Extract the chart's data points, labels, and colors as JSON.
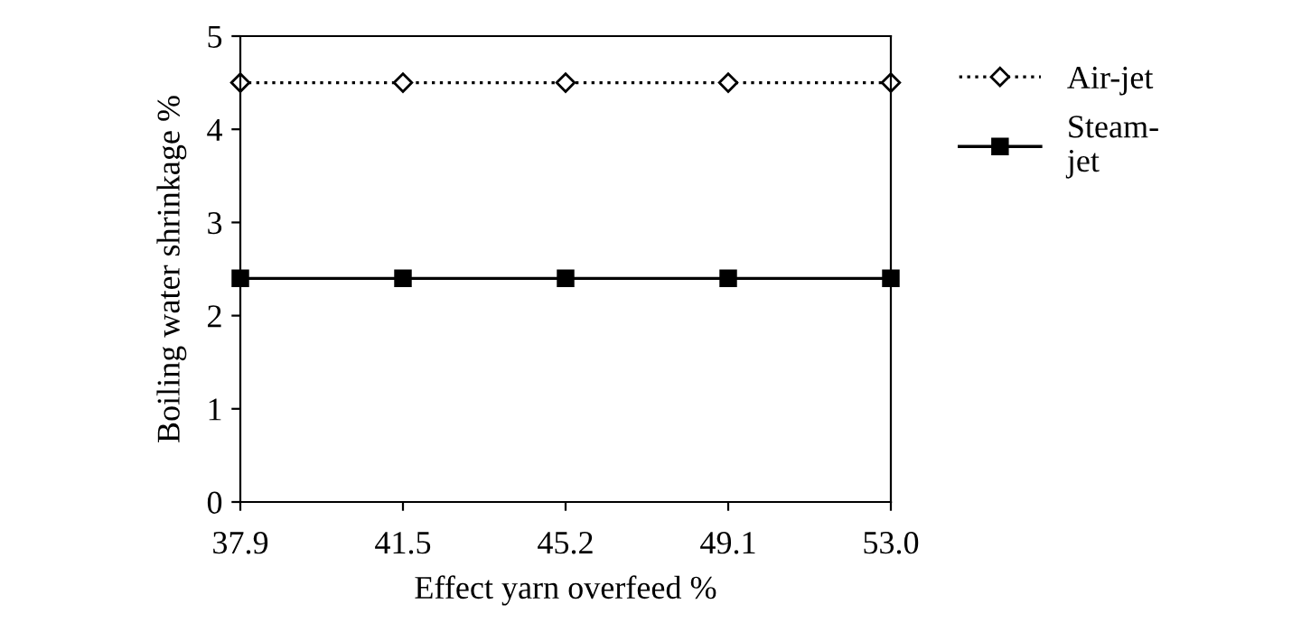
{
  "chart_data": {
    "type": "line",
    "xlabel": "Effect yarn overfeed %",
    "ylabel": "Boiling water shrinkage %",
    "categories": [
      "37.9",
      "41.5",
      "45.2",
      "49.1",
      "53.0"
    ],
    "series": [
      {
        "name": "Air-jet",
        "color": "#000000",
        "marker": "diamond",
        "line_style": "dotted",
        "values": [
          4.5,
          4.5,
          4.5,
          4.5,
          4.5
        ]
      },
      {
        "name": "Steam-\njet",
        "color": "#000000",
        "marker": "square",
        "line_style": "solid",
        "values": [
          2.4,
          2.4,
          2.4,
          2.4,
          2.4
        ]
      }
    ],
    "ylim": [
      0,
      5
    ],
    "yticks": [
      0,
      1,
      2,
      3,
      4,
      5
    ],
    "grid": false,
    "legend": "right"
  }
}
